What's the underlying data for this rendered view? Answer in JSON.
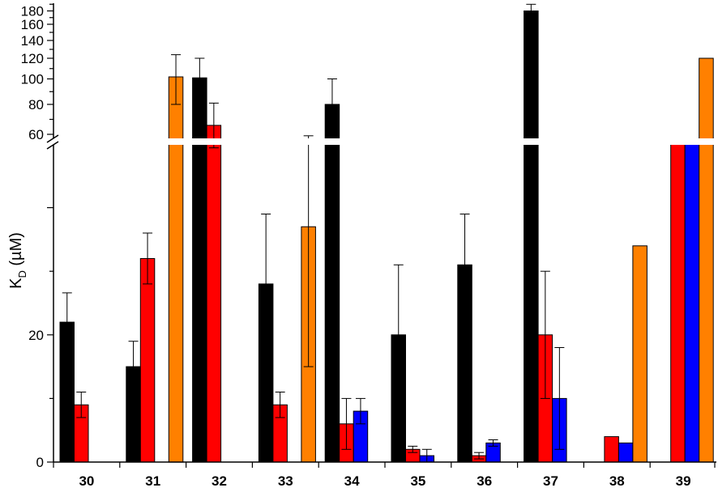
{
  "chart_data": {
    "type": "bar",
    "ylabel": "K",
    "ylabel_sub": "D",
    "ylabel_unit": " (µM)",
    "categories": [
      "30",
      "31",
      "32",
      "33",
      "34",
      "35",
      "36",
      "37",
      "38",
      "39"
    ],
    "y_axis_break": true,
    "ylim_lower": [
      0,
      50
    ],
    "ylim_upper": [
      60,
      190
    ],
    "yticks_lower": [
      {
        "value": 0,
        "label": "0"
      },
      {
        "value": 20,
        "label": "20"
      }
    ],
    "yticks_upper": [
      {
        "value": 60,
        "label": "60"
      },
      {
        "value": 80,
        "label": "80"
      },
      {
        "value": 100,
        "label": "100"
      },
      {
        "value": 120,
        "label": "120"
      },
      {
        "value": 140,
        "label": "140"
      },
      {
        "value": 160,
        "label": "160"
      },
      {
        "value": 180,
        "label": "180"
      }
    ],
    "series_colors": [
      "#000000",
      "#ff0000",
      "#0000ff",
      "#ff8000"
    ],
    "bars": [
      {
        "category": "30",
        "slot": 0,
        "value": 22,
        "error": 4.6
      },
      {
        "category": "30",
        "slot": 1,
        "value": 9,
        "error": 2
      },
      {
        "category": "31",
        "slot": 0,
        "value": 15,
        "error": 4
      },
      {
        "category": "31",
        "slot": 1,
        "value": 32,
        "error": 4
      },
      {
        "category": "31",
        "slot": 3,
        "value": 102,
        "error": 22
      },
      {
        "category": "32",
        "slot": 0,
        "value": 101,
        "error": 19
      },
      {
        "category": "32",
        "slot": 1,
        "value": 66,
        "error": 15
      },
      {
        "category": "33",
        "slot": 0,
        "value": 28,
        "error": 11
      },
      {
        "category": "33",
        "slot": 1,
        "value": 9,
        "error": 2
      },
      {
        "category": "33",
        "slot": 3,
        "value": 37,
        "error": 22
      },
      {
        "category": "34",
        "slot": 0,
        "value": 80,
        "error": 20
      },
      {
        "category": "34",
        "slot": 1,
        "value": 6,
        "error": 4
      },
      {
        "category": "34",
        "slot": 2,
        "value": 8,
        "error": 2
      },
      {
        "category": "35",
        "slot": 0,
        "value": 20,
        "error": 11
      },
      {
        "category": "35",
        "slot": 1,
        "value": 2,
        "error": 0.5
      },
      {
        "category": "35",
        "slot": 2,
        "value": 1,
        "error": 1
      },
      {
        "category": "36",
        "slot": 0,
        "value": 31,
        "error": 8
      },
      {
        "category": "36",
        "slot": 1,
        "value": 1,
        "error": 0.5
      },
      {
        "category": "36",
        "slot": 2,
        "value": 3,
        "error": 0.5
      },
      {
        "category": "37",
        "slot": 0,
        "value": 180,
        "error": 10
      },
      {
        "category": "37",
        "slot": 1,
        "value": 20,
        "error": 10
      },
      {
        "category": "37",
        "slot": 2,
        "value": 10,
        "error": 8
      },
      {
        "category": "38",
        "slot": 1,
        "value": 4,
        "error": 0
      },
      {
        "category": "38",
        "slot": 2,
        "value": 3,
        "error": 0
      },
      {
        "category": "38",
        "slot": 3,
        "value": 34,
        "error": 0
      },
      {
        "category": "39",
        "slot": 1,
        "value": 50,
        "error": 0
      },
      {
        "category": "39",
        "slot": 2,
        "value": 50,
        "error": 0
      },
      {
        "category": "39",
        "slot": 3,
        "value": 120,
        "error": 0
      }
    ]
  }
}
